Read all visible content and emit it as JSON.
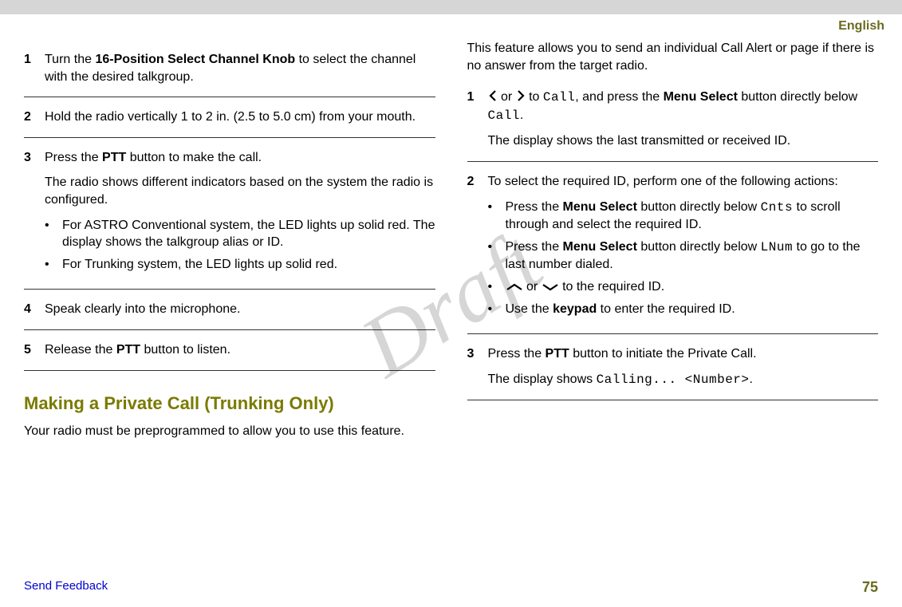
{
  "header": {
    "language": "English"
  },
  "watermark": "Draft",
  "left": {
    "steps": [
      {
        "num": "1",
        "html": "Turn the <b>16-Position Select Channel Knob</b> to select the channel with the desired talkgroup."
      },
      {
        "num": "2",
        "html": "Hold the radio vertically 1 to 2 in. (2.5 to 5.0 cm) from your mouth."
      },
      {
        "num": "3",
        "html": "Press the <b>PTT</b> button to make the call.",
        "para2": "The radio shows different indicators based on the system the radio is configured.",
        "bullets": [
          "For ASTRO Conventional system, the LED lights up solid red. The display shows the talkgroup alias or ID.",
          "For Trunking system, the LED lights up solid red."
        ]
      },
      {
        "num": "4",
        "html": "Speak clearly into the microphone."
      },
      {
        "num": "5",
        "html": "Release the <b>PTT</b> button to listen."
      }
    ],
    "heading": "Making a Private Call (Trunking Only)",
    "intro": "Your radio must be preprogrammed to allow you to use this feature."
  },
  "right": {
    "intro": "This feature allows you to send an individual Call Alert or page if there is no answer from the target radio.",
    "steps": [
      {
        "num": "1",
        "pre": "",
        "mid1": " or ",
        "mid2": " to ",
        "code1": "Call",
        "after1": ", and press the <b>Menu Select</b> button directly below ",
        "code2": "Call",
        "after2": ".",
        "para2": "The display shows the last transmitted or received ID."
      },
      {
        "num": "2",
        "html": "To select the required ID, perform one of the following actions:",
        "bullets": [
          {
            "pre": "Press the <b>Menu Select</b> button directly below ",
            "code": "Cnts",
            "post": " to scroll through and select the required ID."
          },
          {
            "pre": "Press the <b>Menu Select</b> button directly below ",
            "code": "LNum",
            "post": " to go to the last number dialed."
          },
          {
            "arrows": true,
            "post": " to the required ID."
          },
          {
            "pre": "Use the <b>keypad</b> to enter the required ID."
          }
        ]
      },
      {
        "num": "3",
        "html": "Press the <b>PTT</b> button to initiate the Private Call.",
        "para2pre": "The display shows ",
        "para2code": "Calling... <Number>",
        "para2post": "."
      }
    ]
  },
  "footer": {
    "feedback": "Send Feedback",
    "page": "75"
  }
}
